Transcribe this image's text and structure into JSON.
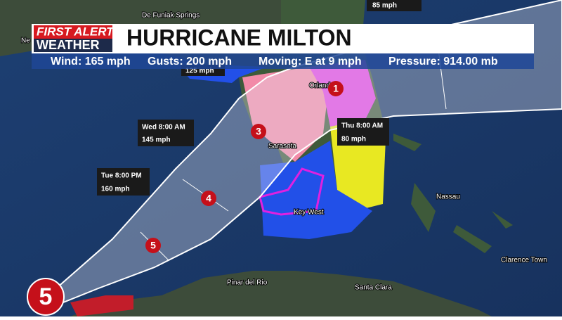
{
  "header": {
    "logo": [
      "FIRST ALERT",
      "WEATHER"
    ],
    "title": "HURRICANE MILTON"
  },
  "stats": [
    "Wind: 165 mph",
    "Gusts: 200 mph",
    "Moving: E at 9 mph",
    "Pressure: 914.00 mb"
  ],
  "forecast_points": [
    {
      "time": "Wed 8:00 AM",
      "speed": "145 mph"
    },
    {
      "time": "Tue 8:00 PM",
      "speed": "160 mph"
    },
    {
      "time": "Thu 8:00 AM",
      "speed": "80 mph"
    }
  ],
  "speed_labels": [
    "85 mph",
    "125 mph"
  ],
  "storm_icons": [
    "5",
    "5",
    "4",
    "3",
    "1"
  ],
  "places": [
    "De Funiak Springs",
    "Ne",
    "Orlando",
    "Sarasota",
    "Key West",
    "Nassau",
    "Clarence Town",
    "Pinar del Rio",
    "Santa Clara"
  ]
}
